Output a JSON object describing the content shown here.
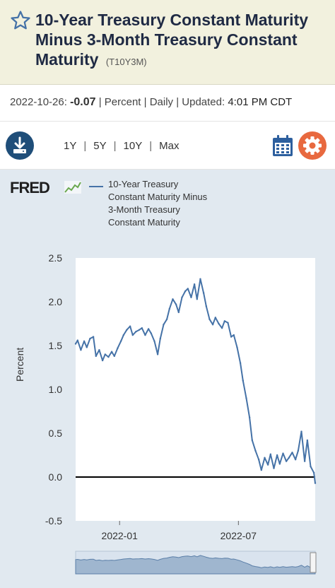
{
  "header": {
    "title": "10-Year Treasury Constant Maturity Minus 3-Month Treasury Constant Maturity",
    "series_id": "(T10Y3M)"
  },
  "meta": {
    "date": "2022-10-26:",
    "value": "-0.07",
    "units": "| Percent | Daily | Updated:",
    "time": "4:01 PM CDT"
  },
  "toolbar": {
    "ranges": [
      "1Y",
      "5Y",
      "10Y",
      "Max"
    ]
  },
  "brand": {
    "logo": "FRED"
  },
  "legend": {
    "label": "10-Year Treasury Constant Maturity Minus 3-Month Treasury Constant Maturity"
  },
  "colors": {
    "series": "#4572a7",
    "header_bg": "#f2f1de",
    "accent_orange": "#e8693f",
    "accent_blue": "#1f4e79"
  },
  "chart_data": {
    "type": "line",
    "title": "",
    "xlabel": "",
    "ylabel": "Percent",
    "ylim": [
      -0.5,
      2.5
    ],
    "yticks": [
      "2.5",
      "2.0",
      "1.5",
      "1.0",
      "0.5",
      "0.0",
      "-0.5"
    ],
    "xticks": [
      "2022-01",
      "2022-07"
    ],
    "zero_line": true,
    "series": [
      {
        "name": "10-Year Treasury Constant Maturity Minus 3-Month Treasury Constant Maturity",
        "x": [
          "2021-10-26",
          "2021-10-29",
          "2021-11-03",
          "2021-11-08",
          "2021-11-12",
          "2021-11-17",
          "2021-11-22",
          "2021-11-26",
          "2021-12-01",
          "2021-12-06",
          "2021-12-10",
          "2021-12-15",
          "2021-12-20",
          "2021-12-24",
          "2021-12-29",
          "2022-01-03",
          "2022-01-07",
          "2022-01-12",
          "2022-01-17",
          "2022-01-21",
          "2022-01-26",
          "2022-01-31",
          "2022-02-04",
          "2022-02-09",
          "2022-02-14",
          "2022-02-18",
          "2022-02-23",
          "2022-02-28",
          "2022-03-04",
          "2022-03-09",
          "2022-03-14",
          "2022-03-18",
          "2022-03-23",
          "2022-03-28",
          "2022-04-01",
          "2022-04-06",
          "2022-04-11",
          "2022-04-15",
          "2022-04-20",
          "2022-04-25",
          "2022-04-29",
          "2022-05-04",
          "2022-05-09",
          "2022-05-13",
          "2022-05-18",
          "2022-05-23",
          "2022-05-27",
          "2022-06-01",
          "2022-06-06",
          "2022-06-10",
          "2022-06-15",
          "2022-06-20",
          "2022-06-24",
          "2022-06-29",
          "2022-07-04",
          "2022-07-08",
          "2022-07-13",
          "2022-07-18",
          "2022-07-22",
          "2022-07-27",
          "2022-08-01",
          "2022-08-05",
          "2022-08-10",
          "2022-08-15",
          "2022-08-19",
          "2022-08-24",
          "2022-08-29",
          "2022-09-02",
          "2022-09-07",
          "2022-09-12",
          "2022-09-16",
          "2022-09-21",
          "2022-09-26",
          "2022-09-30",
          "2022-10-05",
          "2022-10-10",
          "2022-10-14",
          "2022-10-19",
          "2022-10-24",
          "2022-10-26"
        ],
        "y": [
          1.52,
          1.56,
          1.45,
          1.55,
          1.48,
          1.58,
          1.6,
          1.38,
          1.45,
          1.33,
          1.4,
          1.37,
          1.43,
          1.38,
          1.47,
          1.55,
          1.62,
          1.68,
          1.72,
          1.62,
          1.66,
          1.68,
          1.7,
          1.62,
          1.69,
          1.64,
          1.55,
          1.4,
          1.58,
          1.74,
          1.8,
          1.92,
          2.03,
          1.97,
          1.88,
          2.05,
          2.12,
          2.15,
          2.05,
          2.2,
          2.03,
          2.26,
          2.1,
          1.95,
          1.8,
          1.74,
          1.82,
          1.75,
          1.7,
          1.78,
          1.76,
          1.6,
          1.62,
          1.48,
          1.3,
          1.1,
          0.9,
          0.68,
          0.42,
          0.3,
          0.2,
          0.08,
          0.22,
          0.14,
          0.26,
          0.1,
          0.25,
          0.15,
          0.27,
          0.18,
          0.22,
          0.28,
          0.2,
          0.3,
          0.52,
          0.18,
          0.42,
          0.12,
          0.05,
          -0.07
        ]
      }
    ]
  }
}
